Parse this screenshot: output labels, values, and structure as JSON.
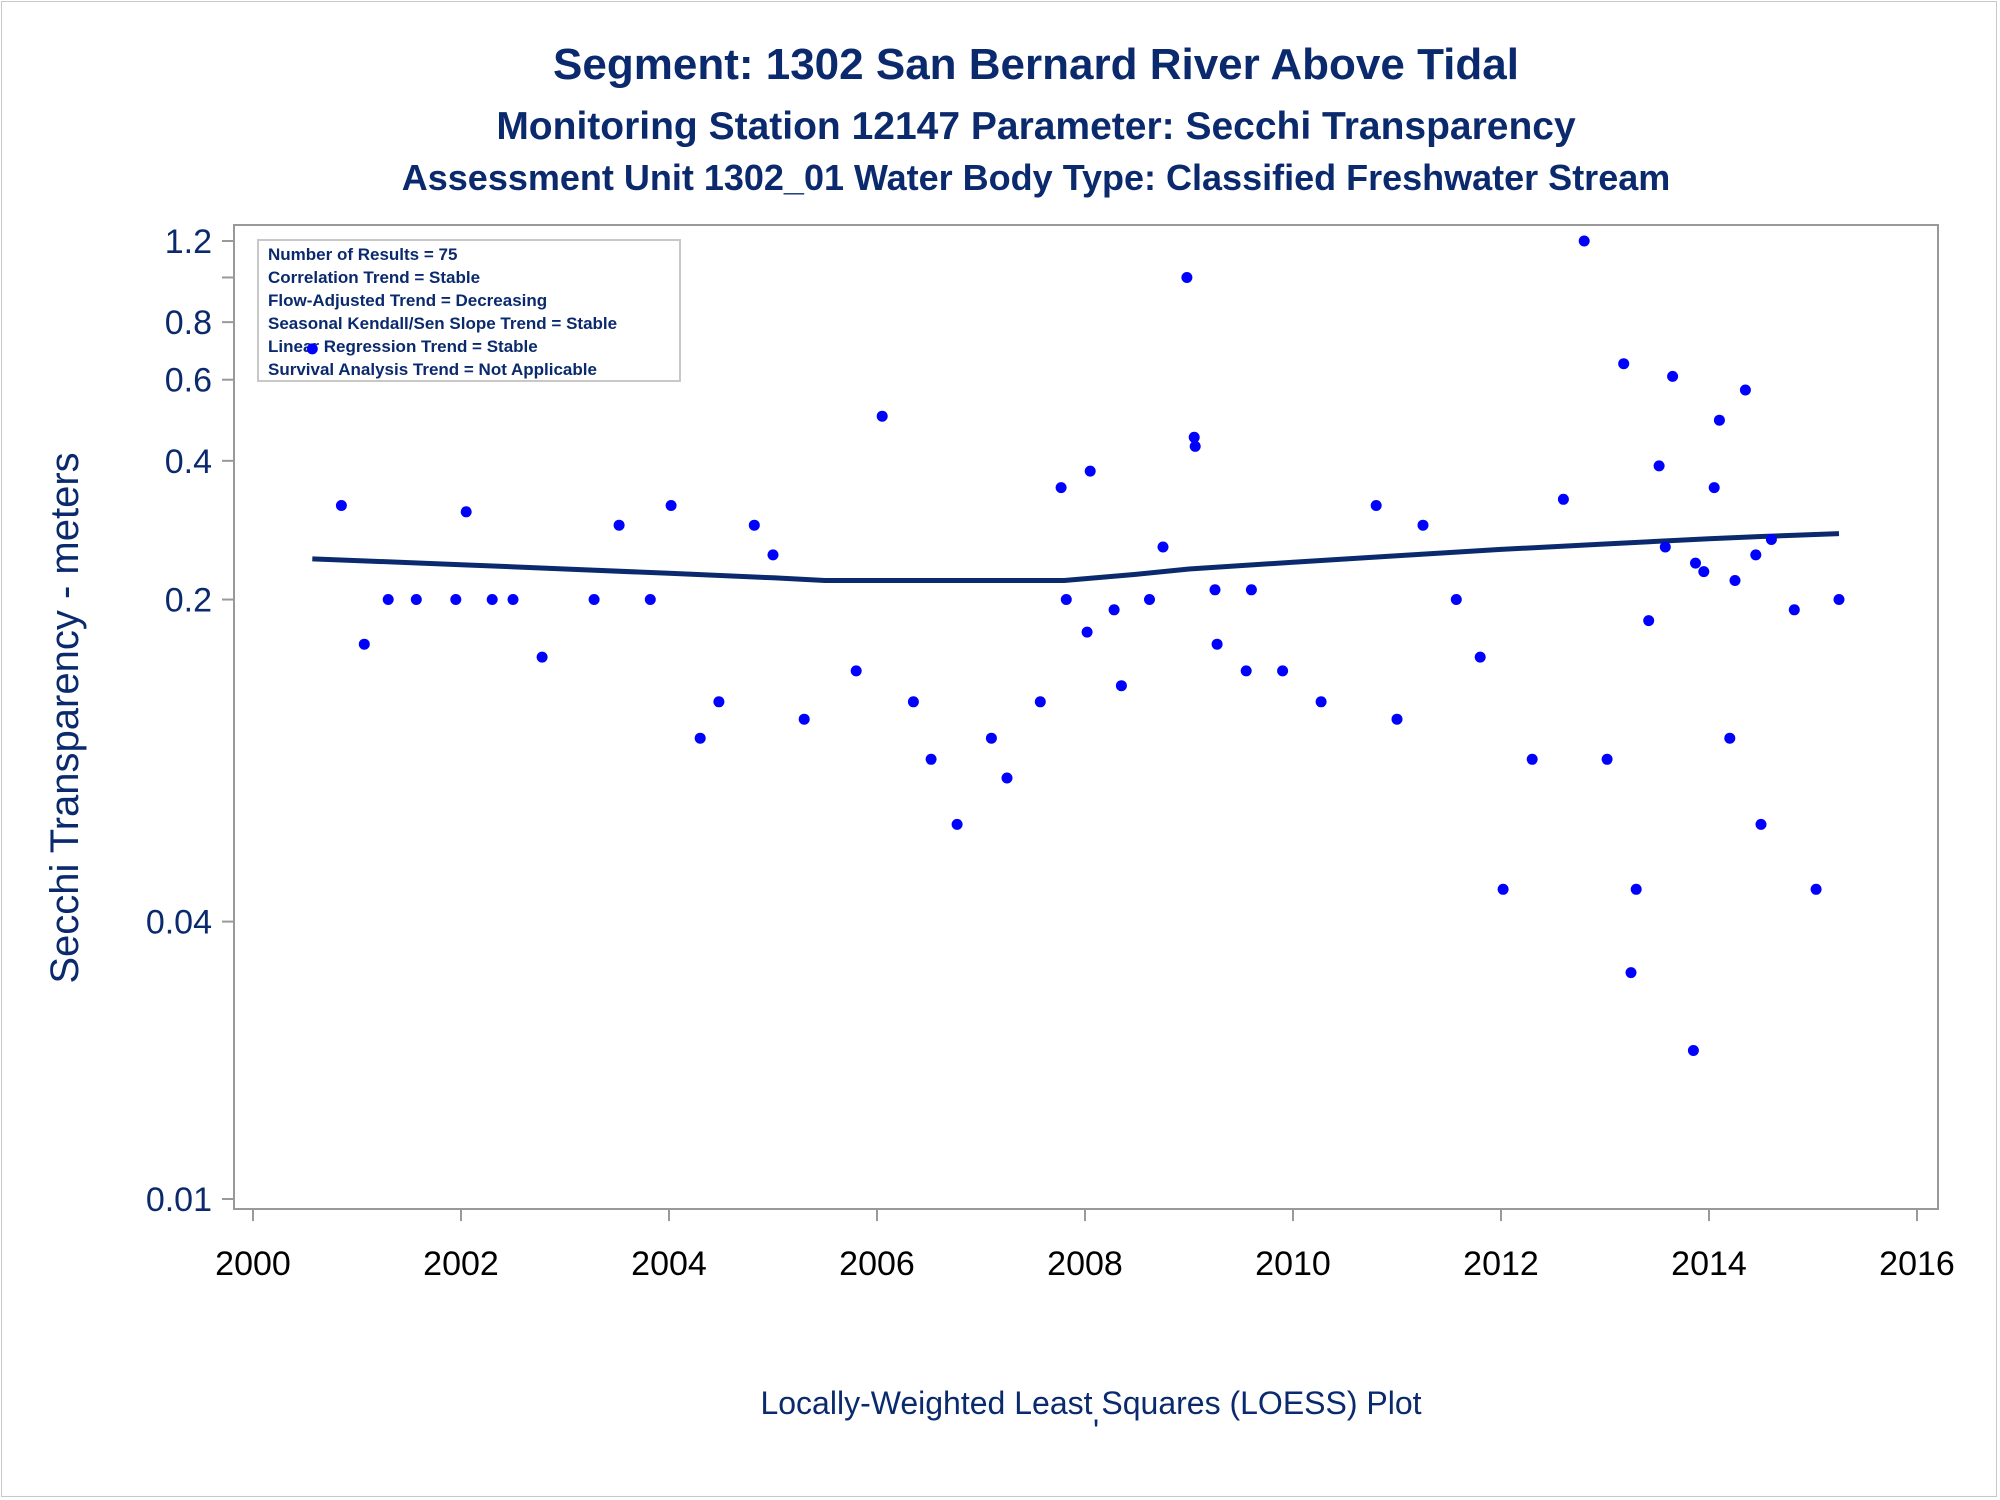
{
  "titles": {
    "line1": "Segment: 1302  San Bernard River Above Tidal",
    "line2": "Monitoring Station 12147 Parameter: Secchi Transparency",
    "line3": "Assessment Unit 1302_01   Water Body Type: Classified Freshwater Stream"
  },
  "legend": [
    "Number of Results = 75",
    "Correlation Trend = Stable",
    "Flow-Adjusted Trend = Decreasing",
    "Seasonal Kendall/Sen Slope Trend = Stable",
    "Linear Regression Trend = Stable",
    "Survival Analysis Trend = Not Applicable"
  ],
  "footnote": "Locally-Weighted Least Squares (LOESS) Plot",
  "footnote_mark": "'",
  "colors": {
    "text": "#0b2a6e",
    "points": "#0000ff",
    "loess": "#0b2a6e",
    "axis": "#999999"
  },
  "chart_data": {
    "type": "scatter",
    "title": "Segment: 1302  San Bernard River Above Tidal",
    "ylabel": "Secchi Transparency - meters",
    "xlabel": "",
    "y_scale": "log",
    "xlim": [
      2000,
      2016
    ],
    "ylim": [
      0.01,
      1.2
    ],
    "grid": false,
    "legend_placement": "top-left",
    "x_ticks": [
      "2000",
      "2002",
      "2004",
      "2006",
      "2008",
      "2010",
      "2012",
      "2014",
      "2016"
    ],
    "y_ticks": [
      {
        "value": 0.01,
        "label": "0.01"
      },
      {
        "value": 0.04,
        "label": "0.04"
      },
      {
        "value": 0.2,
        "label": "0.2"
      },
      {
        "value": 0.4,
        "label": "0.4"
      },
      {
        "value": 0.6,
        "label": "0.6"
      },
      {
        "value": 0.8,
        "label": "0.8"
      },
      {
        "value": 1.0,
        "label": ""
      },
      {
        "value": 1.2,
        "label": "1.2"
      }
    ],
    "series": [
      {
        "type": "scatter",
        "points": [
          [
            2000.57,
            0.7
          ],
          [
            2000.85,
            0.32
          ],
          [
            2001.07,
            0.16
          ],
          [
            2001.3,
            0.2
          ],
          [
            2001.57,
            0.2
          ],
          [
            2001.95,
            0.2
          ],
          [
            2002.05,
            0.31
          ],
          [
            2002.3,
            0.2
          ],
          [
            2002.5,
            0.2
          ],
          [
            2002.78,
            0.15
          ],
          [
            2003.28,
            0.2
          ],
          [
            2003.52,
            0.29
          ],
          [
            2003.82,
            0.2
          ],
          [
            2004.02,
            0.32
          ],
          [
            2004.3,
            0.1
          ],
          [
            2004.48,
            0.12
          ],
          [
            2004.82,
            0.29
          ],
          [
            2005.0,
            0.25
          ],
          [
            2005.3,
            0.11
          ],
          [
            2005.8,
            0.14
          ],
          [
            2006.05,
            0.5
          ],
          [
            2006.35,
            0.12
          ],
          [
            2006.52,
            0.09
          ],
          [
            2006.77,
            0.065
          ],
          [
            2007.1,
            0.1
          ],
          [
            2007.25,
            0.082
          ],
          [
            2007.57,
            0.12
          ],
          [
            2007.77,
            0.35
          ],
          [
            2007.82,
            0.2
          ],
          [
            2008.02,
            0.17
          ],
          [
            2008.05,
            0.38
          ],
          [
            2008.28,
            0.19
          ],
          [
            2008.35,
            0.13
          ],
          [
            2008.62,
            0.2
          ],
          [
            2008.75,
            0.26
          ],
          [
            2008.98,
            1.0
          ],
          [
            2009.05,
            0.45
          ],
          [
            2009.06,
            0.43
          ],
          [
            2009.25,
            0.21
          ],
          [
            2009.27,
            0.16
          ],
          [
            2009.55,
            0.14
          ],
          [
            2009.6,
            0.21
          ],
          [
            2009.9,
            0.14
          ],
          [
            2010.27,
            0.12
          ],
          [
            2010.8,
            0.32
          ],
          [
            2011.0,
            0.11
          ],
          [
            2011.25,
            0.29
          ],
          [
            2011.57,
            0.2
          ],
          [
            2011.8,
            0.15
          ],
          [
            2012.02,
            0.047
          ],
          [
            2012.3,
            0.09
          ],
          [
            2012.6,
            0.33
          ],
          [
            2012.8,
            1.2
          ],
          [
            2013.02,
            0.09
          ],
          [
            2013.18,
            0.65
          ],
          [
            2013.25,
            0.031
          ],
          [
            2013.3,
            0.047
          ],
          [
            2013.42,
            0.18
          ],
          [
            2013.52,
            0.39
          ],
          [
            2013.58,
            0.26
          ],
          [
            2013.65,
            0.61
          ],
          [
            2013.85,
            0.021
          ],
          [
            2013.87,
            0.24
          ],
          [
            2013.95,
            0.23
          ],
          [
            2014.05,
            0.35
          ],
          [
            2014.1,
            0.49
          ],
          [
            2014.2,
            0.1
          ],
          [
            2014.25,
            0.22
          ],
          [
            2014.35,
            0.57
          ],
          [
            2014.45,
            0.25
          ],
          [
            2014.5,
            0.065
          ],
          [
            2014.6,
            0.27
          ],
          [
            2014.82,
            0.19
          ],
          [
            2015.03,
            0.047
          ],
          [
            2015.25,
            0.2
          ]
        ]
      },
      {
        "type": "line",
        "points": [
          [
            2000.57,
            0.245
          ],
          [
            2001.0,
            0.243
          ],
          [
            2002.0,
            0.238
          ],
          [
            2003.0,
            0.233
          ],
          [
            2004.0,
            0.228
          ],
          [
            2005.0,
            0.223
          ],
          [
            2005.5,
            0.22
          ],
          [
            2006.0,
            0.22
          ],
          [
            2007.0,
            0.22
          ],
          [
            2007.8,
            0.22
          ],
          [
            2008.5,
            0.227
          ],
          [
            2009.0,
            0.233
          ],
          [
            2010.0,
            0.241
          ],
          [
            2011.0,
            0.249
          ],
          [
            2012.0,
            0.257
          ],
          [
            2013.0,
            0.264
          ],
          [
            2014.0,
            0.271
          ],
          [
            2014.5,
            0.274
          ],
          [
            2015.25,
            0.278
          ]
        ]
      }
    ]
  }
}
